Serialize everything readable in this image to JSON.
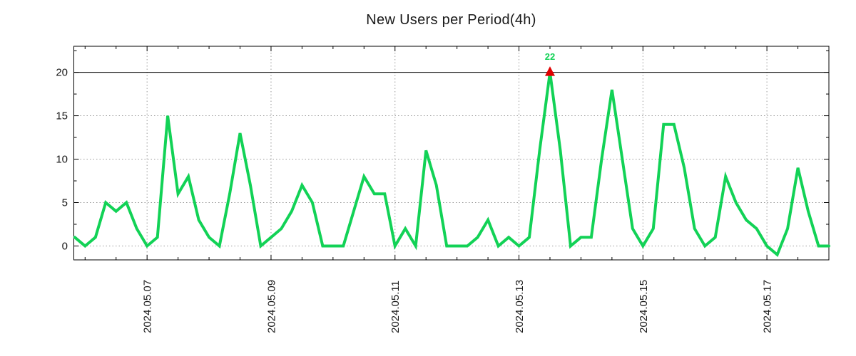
{
  "chart_data": {
    "type": "line",
    "title": "New Users per Period(4h)",
    "xlabel": "",
    "ylabel": "",
    "start_time": "2024-05-05 20:00",
    "interval_hours": 4,
    "values": [
      1,
      0,
      1,
      5,
      4,
      5,
      2,
      0,
      1,
      15,
      6,
      8,
      3,
      1,
      0,
      6,
      13,
      7,
      0,
      1,
      2,
      4,
      7,
      5,
      0,
      0,
      0,
      4,
      8,
      6,
      6,
      0,
      2,
      0,
      11,
      7,
      0,
      0,
      0,
      1,
      3,
      0,
      1,
      0,
      1,
      11,
      22,
      11,
      0,
      1,
      1,
      10,
      18,
      10,
      2,
      0,
      2,
      14,
      14,
      9,
      2,
      0,
      1,
      8,
      5,
      3,
      2,
      0,
      -1,
      2,
      9,
      4,
      0,
      0
    ],
    "x_ticks": [
      {
        "index": 7,
        "label": "2024.05.07"
      },
      {
        "index": 19,
        "label": "2024.05.09"
      },
      {
        "index": 31,
        "label": "2024.05.11"
      },
      {
        "index": 43,
        "label": "2024.05.13"
      },
      {
        "index": 55,
        "label": "2024.05.15"
      },
      {
        "index": 67,
        "label": "2024.05.17"
      }
    ],
    "x_minor_tick_every": 3,
    "y_ticks": [
      0,
      5,
      10,
      15,
      20
    ],
    "y_minor_ticks": [
      2.5,
      7.5,
      12.5,
      17.5,
      22.5
    ],
    "ylim": [
      -1.6,
      23
    ],
    "grid": true,
    "legend": "none",
    "max_line_value": 20,
    "clip_at": 20,
    "annotation": {
      "index": 46,
      "value": 22,
      "label": "22",
      "marker": "red-triangle"
    },
    "colors": {
      "series": "#12d256",
      "annotation_label": "#12d256",
      "marker": "#e00000",
      "grid": "#9a9a9a",
      "axis": "#000000",
      "text": "#1a1a1a"
    }
  }
}
